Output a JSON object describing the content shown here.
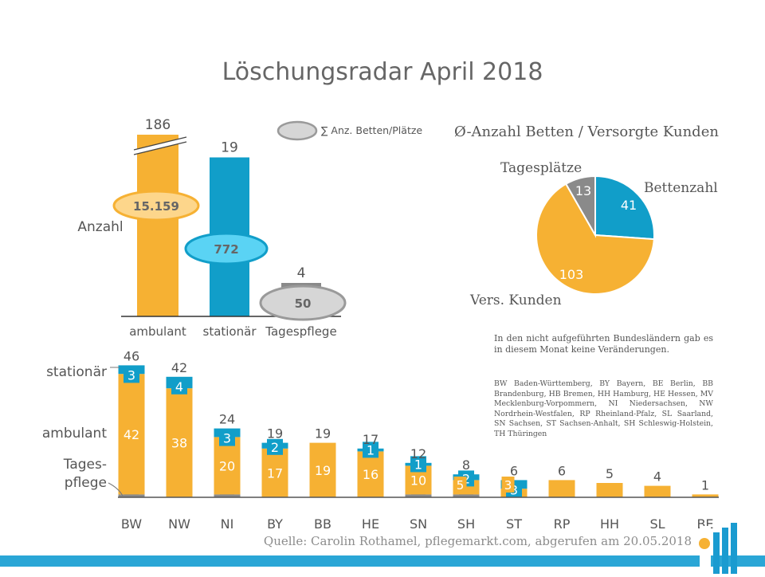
{
  "title": "Löschungsradar April 2018",
  "colors": {
    "ambulant": "#f6b133",
    "stationaer": "#119ec9",
    "tagespflege": "#8a8a8a",
    "text": "#555555",
    "ellipse_ambulant": "#fdd68b",
    "ellipse_stationaer": "#5ad3f4",
    "ellipse_tagespflege": "#d6d6d6"
  },
  "chart_data": [
    {
      "type": "bar",
      "categories": [
        "ambulant",
        "stationär",
        "Tagespflege"
      ],
      "values": [
        186,
        19,
        4
      ],
      "axis_break_on": "ambulant",
      "ylabel": "Anzahl",
      "beds": {
        "legend": "∑ Anz. Betten/Plätze",
        "values": [
          "15.159",
          "772",
          "50"
        ]
      }
    },
    {
      "type": "pie",
      "title": "Ø-Anzahl Betten / Versorgte Kunden",
      "slices": [
        {
          "label": "Bettenzahl",
          "value": 41,
          "color": "#119ec9"
        },
        {
          "label": "Vers. Kunden",
          "value": 103,
          "color": "#f6b133"
        },
        {
          "label": "Tagesplätze",
          "value": 13,
          "color": "#8a8a8a"
        }
      ]
    },
    {
      "type": "bar",
      "stacked": true,
      "categories": [
        "BW",
        "NW",
        "NI",
        "BY",
        "BB",
        "HE",
        "SN",
        "SH",
        "ST",
        "RP",
        "HH",
        "SL",
        "BE"
      ],
      "totals": [
        46,
        42,
        24,
        19,
        19,
        17,
        12,
        8,
        6,
        6,
        5,
        4,
        1
      ],
      "series": [
        {
          "name": "Tages- pflege",
          "label_lines": [
            "Tages-",
            "pflege"
          ],
          "values": [
            1,
            0,
            1,
            0,
            0,
            0,
            1,
            1,
            0,
            0,
            0,
            0,
            0
          ]
        },
        {
          "name": "ambulant",
          "label_lines": [
            "ambulant"
          ],
          "values": [
            42,
            38,
            20,
            17,
            19,
            16,
            10,
            5,
            3,
            6,
            5,
            4,
            1
          ]
        },
        {
          "name": "stationär",
          "label_lines": [
            "stationär"
          ],
          "values": [
            3,
            4,
            3,
            2,
            0,
            1,
            1,
            2,
            3,
            0,
            0,
            0,
            0
          ]
        }
      ]
    }
  ],
  "notes": {
    "main": "In den nicht aufgeführten Bundesländern gab es in diesem Monat keine Veränderungen.",
    "abbreviations": "BW Baden-Württemberg, BY Bayern, BE Berlin, BB Brandenburg, HB Bremen, HH Hamburg, HE Hessen, MV Mecklenburg-Vorpommern, NI Niedersachsen, NW Nordrhein-Westfalen, RP Rheinland-Pfalz, SL Saarland, SN Sachsen, ST Sachsen-Anhalt, SH Schleswig-Holstein, TH Thüringen"
  },
  "source": "Quelle: Carolin Rothamel, pflegemarkt.com, abgerufen am 20.05.2018",
  "logo": {
    "icon": "pflegemarkt-logo-icon"
  }
}
